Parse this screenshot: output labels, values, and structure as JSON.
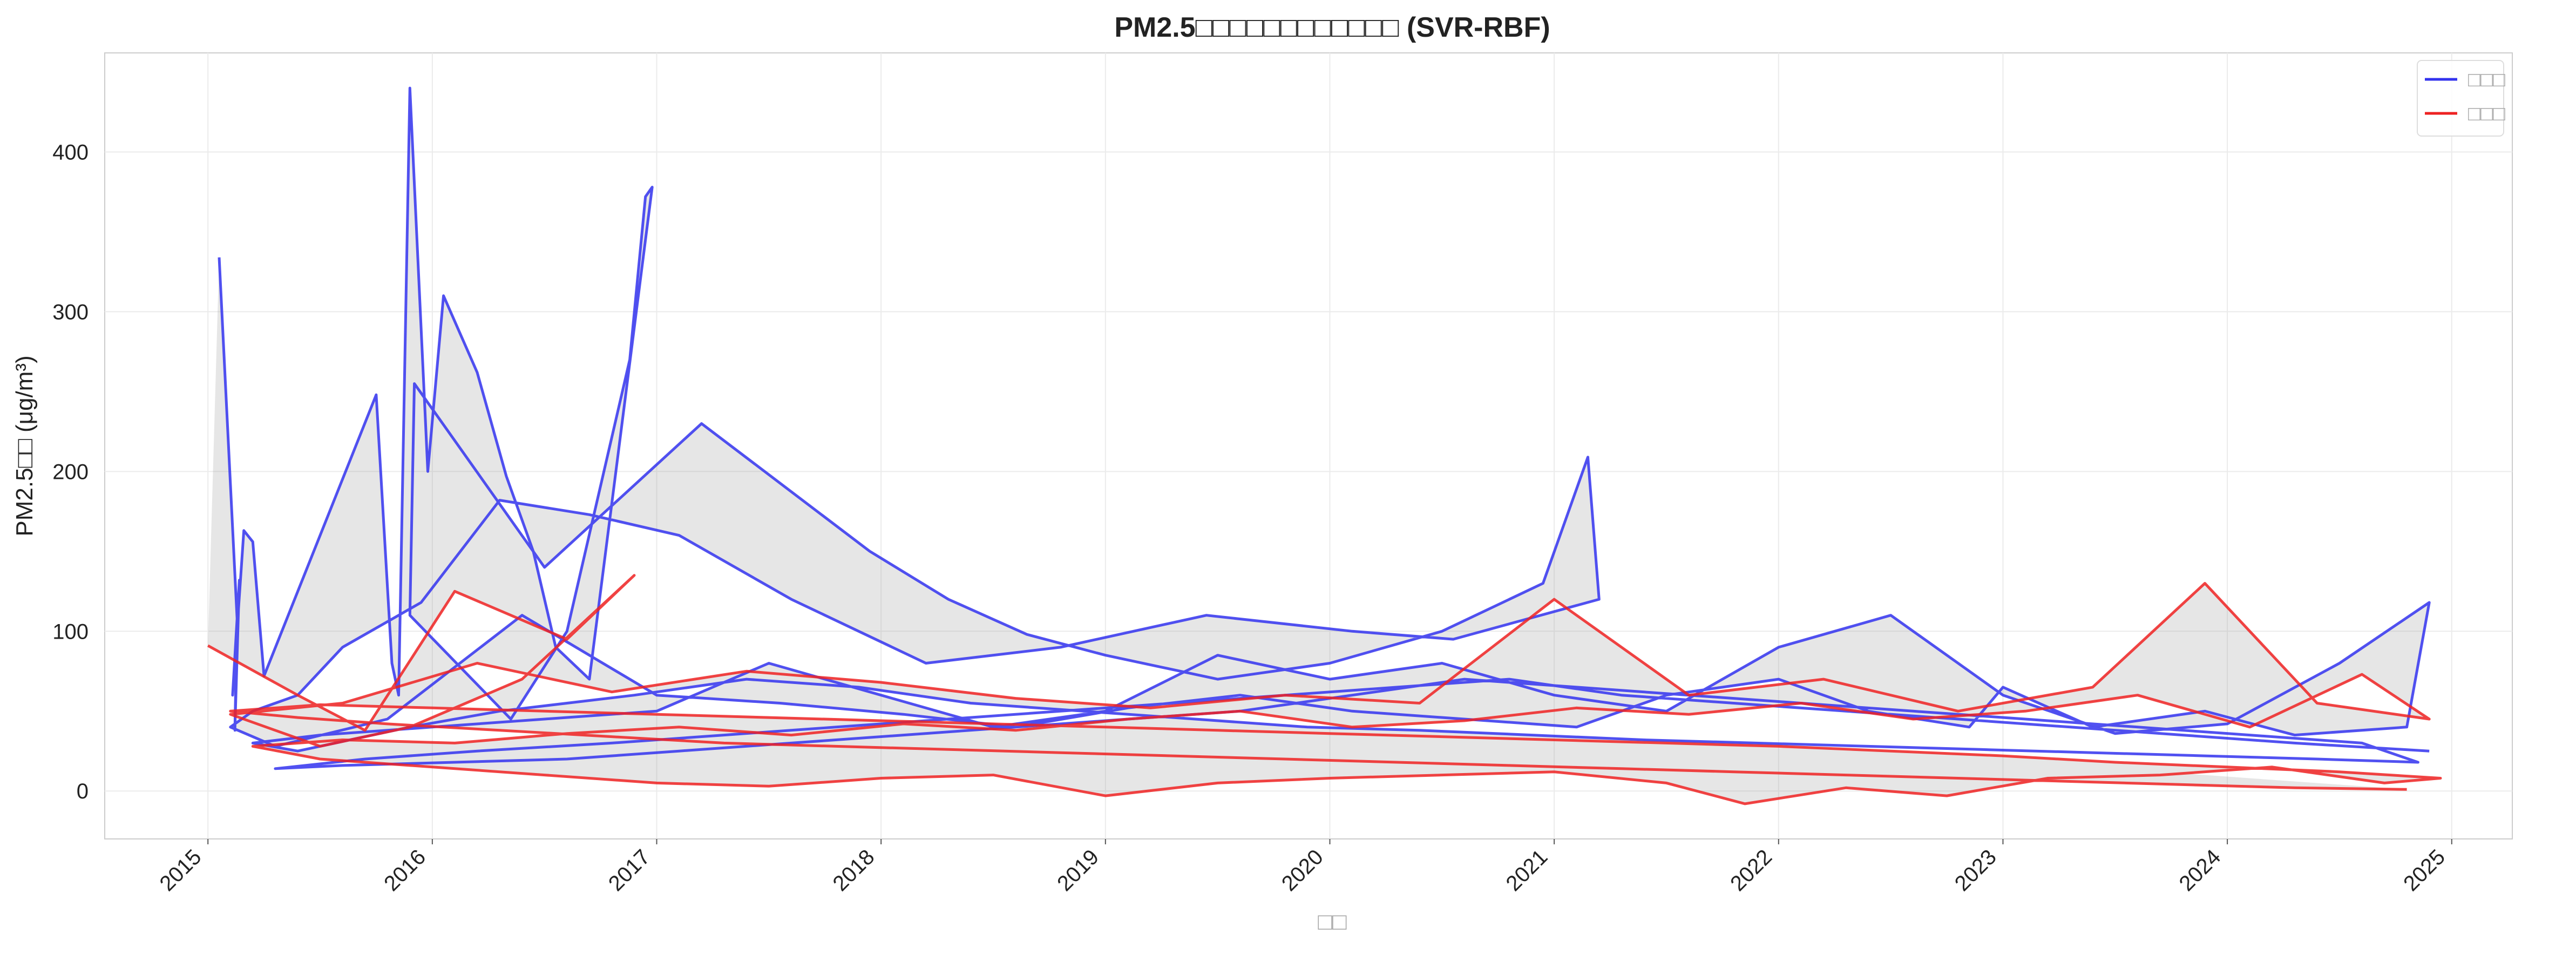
{
  "chart_data": {
    "type": "line",
    "title": "PM2.5□□□□□□□□□□□□ (SVR-RBF)",
    "xlabel": "□□",
    "ylabel": "PM2.5□□ (μg/m³)",
    "xlim": [
      2014.54,
      2025.27
    ],
    "ylim": [
      -30,
      462
    ],
    "x_ticks": [
      "2015",
      "2016",
      "2017",
      "2018",
      "2019",
      "2020",
      "2021",
      "2022",
      "2023",
      "2024",
      "2025"
    ],
    "y_ticks": [
      "0",
      "100",
      "200",
      "300",
      "400"
    ],
    "grid": true,
    "legend": "top-right",
    "series": [
      {
        "name": "□□□",
        "color": "#3333ee",
        "x": [
          2015.05,
          2015.13,
          2015.12,
          2015.14,
          2015.11,
          2015.16,
          2015.2,
          2015.25,
          2015.75,
          2015.82,
          2015.85,
          2015.9,
          2015.98,
          2016.05,
          2016.2,
          2016.33,
          2016.45,
          2016.55,
          2016.7,
          2016.98,
          2016.95,
          2016.88,
          2016.6,
          2016.35,
          2015.9,
          2015.92,
          2016.5,
          2017.2,
          2017.95,
          2018.3,
          2018.65,
          2019.0,
          2019.5,
          2020.0,
          2020.5,
          2020.95,
          2021.15,
          2021.2,
          2020.55,
          2020.1,
          2019.45,
          2018.8,
          2018.2,
          2017.6,
          2017.1,
          2016.7,
          2016.3,
          2015.95,
          2015.6,
          2015.4,
          2015.2,
          2015.1,
          2015.3,
          2015.8,
          2016.4,
          2017.0,
          2017.55,
          2018.1,
          2018.6,
          2019.1,
          2019.6,
          2020.1,
          2020.6,
          2021.1,
          2021.5,
          2022.0,
          2022.4,
          2022.85,
          2023.0,
          2023.4,
          2023.9,
          2024.3,
          2024.8,
          2024.9,
          2024.5,
          2024.0,
          2023.5,
          2023.0,
          2022.5,
          2022.0,
          2021.5,
          2021.0,
          2020.5,
          2020.0,
          2019.5,
          2019.0,
          2018.5,
          2018.0,
          2017.5,
          2017.0,
          2016.5,
          2016.0,
          2015.5,
          2015.2,
          2015.4,
          2015.9,
          2016.3,
          2016.9,
          2017.4,
          2017.9,
          2018.4,
          2018.9,
          2019.4,
          2019.9,
          2020.4,
          2020.9,
          2021.4,
          2021.9,
          2022.4,
          2022.9,
          2023.4,
          2023.9,
          2024.4,
          2024.85,
          2024.6,
          2024.1,
          2023.6,
          2023.1,
          2022.6,
          2022.1,
          2021.6,
          2021.1,
          2020.6,
          2020.1,
          2019.6,
          2019.1,
          2018.6,
          2018.1,
          2017.6,
          2017.1,
          2016.6,
          2016.1,
          2015.6,
          2015.3,
          2015.7,
          2016.2,
          2016.8,
          2017.3,
          2017.8,
          2018.3,
          2018.8,
          2019.3,
          2019.8,
          2020.3,
          2020.8,
          2021.3,
          2021.8,
          2022.3,
          2022.8,
          2023.3,
          2023.8,
          2024.3,
          2024.9
        ],
        "values": [
          334,
          108,
          38,
          132,
          60,
          163,
          156,
          72,
          248,
          80,
          60,
          440,
          200,
          310,
          262,
          197,
          150,
          90,
          70,
          378,
          372,
          270,
          100,
          45,
          110,
          255,
          140,
          230,
          150,
          120,
          98,
          85,
          70,
          80,
          100,
          130,
          209,
          120,
          95,
          100,
          110,
          90,
          80,
          120,
          160,
          173,
          182,
          118,
          90,
          60,
          50,
          40,
          28,
          45,
          110,
          60,
          55,
          48,
          40,
          52,
          60,
          50,
          45,
          40,
          60,
          70,
          50,
          40,
          65,
          40,
          50,
          35,
          40,
          118,
          80,
          42,
          36,
          60,
          110,
          90,
          50,
          60,
          80,
          70,
          85,
          50,
          40,
          60,
          80,
          50,
          45,
          40,
          35,
          30,
          25,
          40,
          50,
          60,
          70,
          65,
          55,
          50,
          45,
          40,
          38,
          35,
          32,
          30,
          28,
          26,
          24,
          22,
          20,
          18,
          30,
          35,
          40,
          45,
          50,
          55,
          60,
          65,
          70,
          60,
          50,
          45,
          40,
          35,
          30,
          25,
          20,
          18,
          16,
          14,
          20,
          25,
          30,
          35,
          40,
          45,
          50,
          55,
          60,
          65,
          70,
          60,
          55,
          50,
          45,
          40,
          35,
          30,
          25
        ]
      },
      {
        "name": "□□□",
        "color": "#ee2222",
        "x": [
          2015.0,
          2015.4,
          2015.7,
          2016.1,
          2016.6,
          2016.9,
          2016.4,
          2015.9,
          2015.5,
          2015.1,
          2015.6,
          2016.2,
          2016.8,
          2017.4,
          2018.0,
          2018.6,
          2019.2,
          2019.8,
          2020.4,
          2021.0,
          2021.6,
          2022.2,
          2022.8,
          2023.4,
          2023.9,
          2024.4,
          2024.9,
          2024.6,
          2024.1,
          2023.6,
          2023.1,
          2022.6,
          2022.1,
          2021.6,
          2021.1,
          2020.6,
          2020.1,
          2019.6,
          2019.1,
          2018.6,
          2018.1,
          2017.6,
          2017.1,
          2016.6,
          2016.1,
          2015.6,
          2015.2,
          2015.5,
          2016.0,
          2016.5,
          2017.0,
          2017.5,
          2018.0,
          2018.5,
          2019.0,
          2019.5,
          2020.0,
          2020.5,
          2021.0,
          2021.5,
          2021.85,
          2022.3,
          2022.75,
          2023.2,
          2023.7,
          2024.2,
          2024.7,
          2024.95,
          2024.5,
          2024.0,
          2023.5,
          2023.0,
          2022.5,
          2022.0,
          2021.5,
          2021.0,
          2020.5,
          2020.0,
          2019.5,
          2019.0,
          2018.5,
          2018.0,
          2017.5,
          2017.0,
          2016.5,
          2016.0,
          2015.5,
          2015.1,
          2015.4,
          2015.8,
          2016.3,
          2016.8,
          2017.3,
          2017.8,
          2018.3,
          2018.8,
          2019.3,
          2019.8,
          2020.3,
          2020.8,
          2021.3,
          2021.8,
          2022.3,
          2022.8,
          2023.3,
          2023.8,
          2024.3,
          2024.8
        ],
        "values": [
          91,
          60,
          38,
          125,
          95,
          135,
          70,
          40,
          28,
          48,
          55,
          80,
          62,
          75,
          68,
          58,
          52,
          60,
          55,
          120,
          60,
          70,
          50,
          65,
          130,
          55,
          45,
          73,
          40,
          60,
          50,
          45,
          55,
          48,
          52,
          44,
          40,
          50,
          45,
          38,
          42,
          35,
          40,
          36,
          30,
          32,
          28,
          20,
          15,
          10,
          5,
          3,
          8,
          10,
          -3,
          5,
          8,
          10,
          12,
          5,
          -8,
          2,
          -3,
          8,
          10,
          15,
          5,
          8,
          12,
          15,
          18,
          22,
          25,
          28,
          30,
          32,
          34,
          36,
          38,
          40,
          42,
          44,
          46,
          48,
          50,
          52,
          54,
          50,
          46,
          42,
          38,
          34,
          30,
          28,
          26,
          24,
          22,
          20,
          18,
          16,
          14,
          12,
          10,
          8,
          6,
          4,
          2,
          1
        ]
      }
    ]
  }
}
